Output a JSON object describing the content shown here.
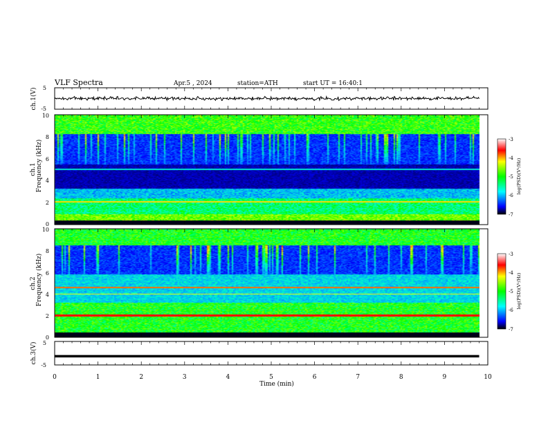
{
  "header": {
    "title": "VLF Spectra",
    "date": "Apr.5 , 2024",
    "station": "station=ATH",
    "start": "start UT = 16:40:1"
  },
  "chart_data": [
    {
      "type": "line",
      "panel": "ch1-waveform",
      "ylabel": "ch.1(V)",
      "yticks": [
        "5",
        "-5"
      ],
      "ylim": [
        -5,
        5
      ],
      "xlim": [
        0,
        10
      ],
      "data_until_min": 9.8,
      "baseline_V": 0,
      "amplitude_V": 1
    },
    {
      "type": "heatmap",
      "panel": "ch1-spectrogram",
      "ylabel": [
        "ch.1",
        "Frequency (kHz)"
      ],
      "yticks": [
        "10",
        "8",
        "6",
        "4",
        "2",
        "0"
      ],
      "ylim": [
        0,
        10
      ],
      "xlim": [
        0,
        10
      ],
      "colorbar": {
        "label": "log(PSD)(V²/Hz)",
        "ticks": [
          "-3",
          "-4",
          "-5",
          "-6",
          "-7"
        ],
        "range": [
          -7,
          -3
        ]
      }
    },
    {
      "type": "heatmap",
      "panel": "ch2-spectrogram",
      "ylabel": [
        "ch.2",
        "Frequency (kHz)"
      ],
      "yticks": [
        "10",
        "8",
        "6",
        "4",
        "2",
        "0"
      ],
      "ylim": [
        0,
        10
      ],
      "xlim": [
        0,
        10
      ],
      "colorbar": {
        "label": "log(PSD)(V²/Hz)",
        "ticks": [
          "-3",
          "-4",
          "-5",
          "-6",
          "-7"
        ],
        "range": [
          -7,
          -3
        ]
      }
    },
    {
      "type": "line",
      "panel": "ch3-waveform",
      "ylabel": "ch.3(V)",
      "yticks": [
        "5",
        "-5"
      ],
      "ylim": [
        -5,
        5
      ],
      "xlim": [
        0,
        10
      ],
      "data_until_min": 9.8,
      "baseline_V": -1.3,
      "amplitude_V": 0
    }
  ],
  "xaxis": {
    "label": "Time (min)",
    "ticks": [
      "0",
      "1",
      "2",
      "3",
      "4",
      "5",
      "6",
      "7",
      "8",
      "9",
      "10"
    ]
  },
  "colors": [
    "#000000",
    "#00007a",
    "#0000ff",
    "#00ff00",
    "#ffff00",
    "#ff0000",
    "#ffffff"
  ]
}
